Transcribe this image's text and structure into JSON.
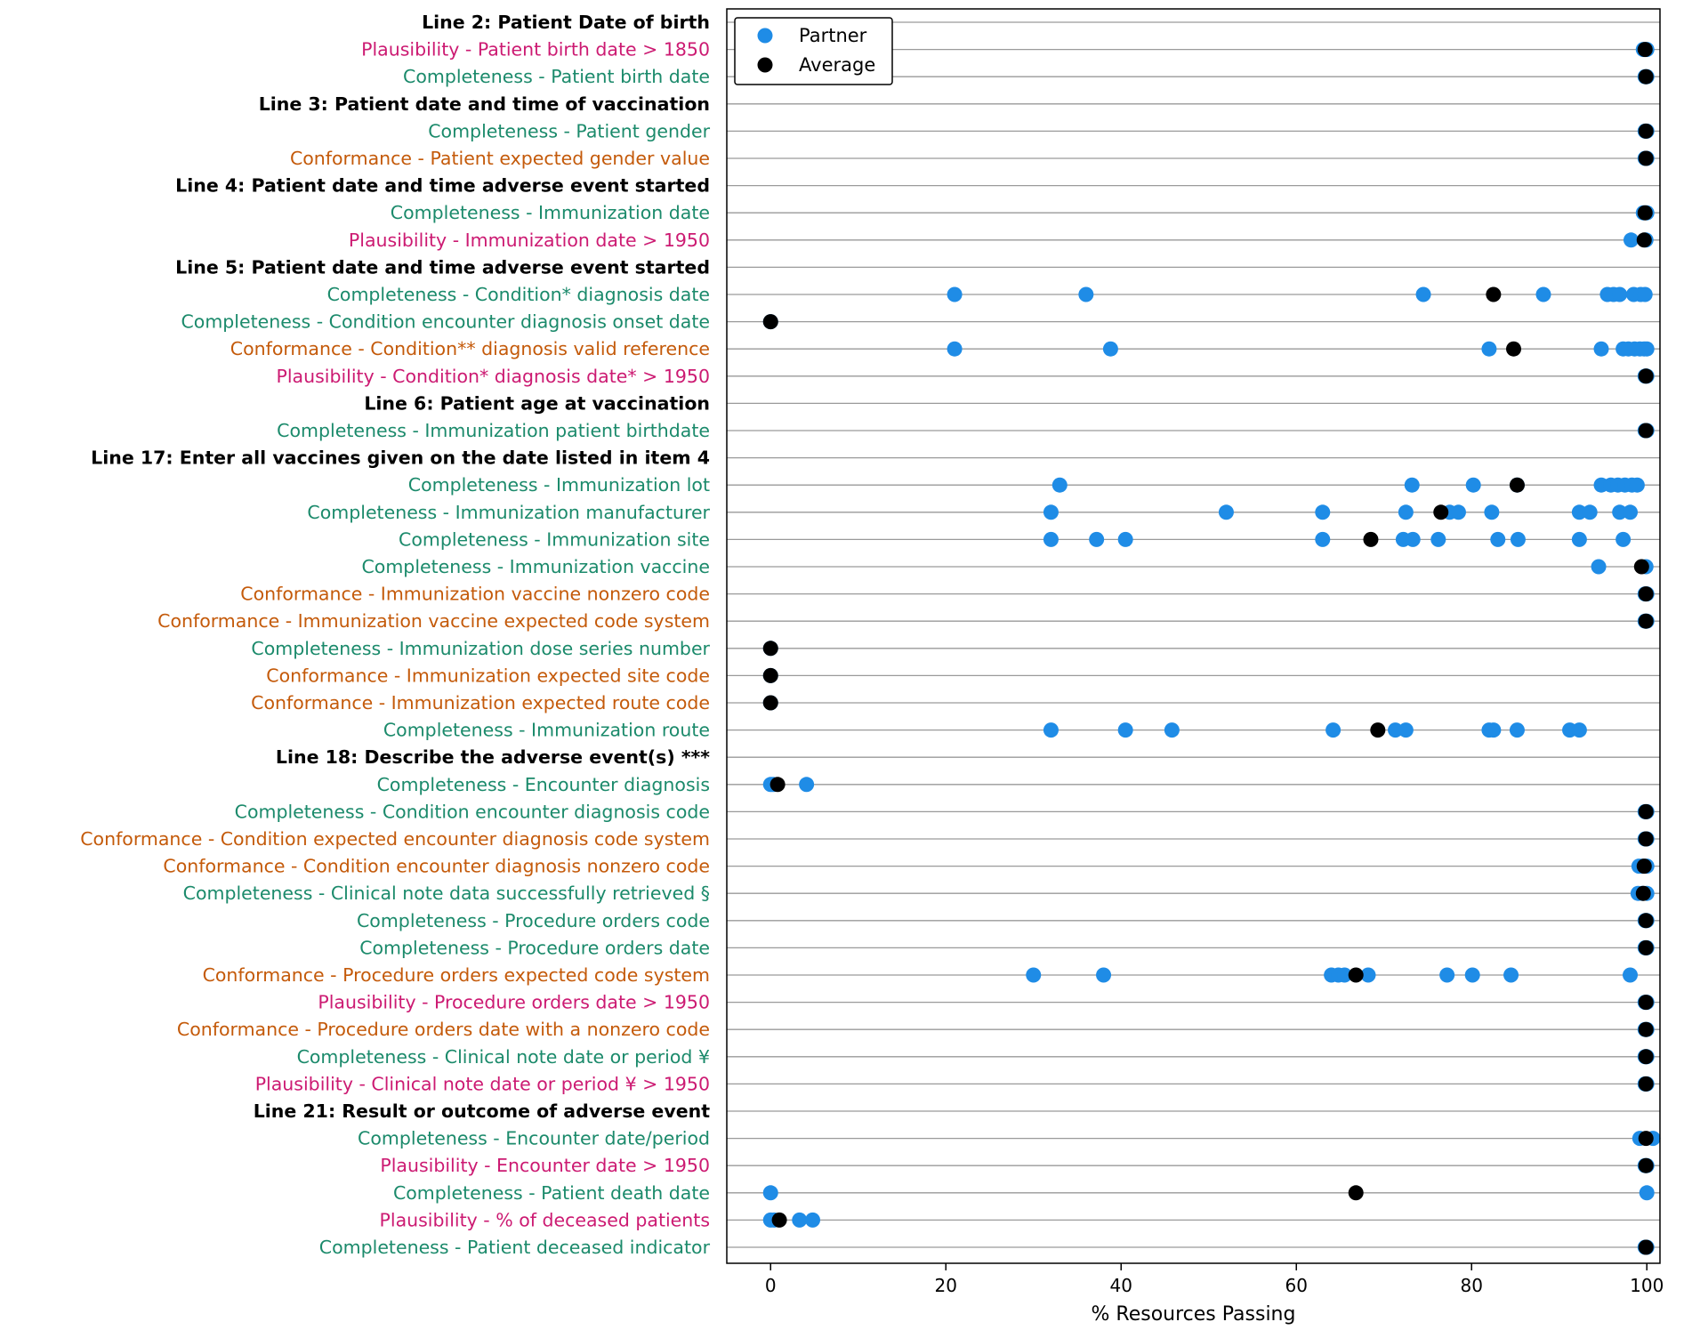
{
  "colors": {
    "partner": "#1f8ce6",
    "average": "#000000",
    "Completeness": "#1b8a6b",
    "Conformance": "#c45a0a",
    "Plausibility": "#cc1a72",
    "heading": "#000000",
    "gridline": "#9a9a9a"
  },
  "chart_data": {
    "type": "scatter",
    "orientation": "horizontal",
    "xlabel": "% Resources Passing",
    "xlim": [
      -5,
      101.5
    ],
    "xticks": [
      0,
      20,
      40,
      60,
      80,
      100
    ],
    "legend": {
      "location": "top-left",
      "entries": [
        {
          "name": "Partner",
          "color_key": "partner"
        },
        {
          "name": "Average",
          "color_key": "average"
        }
      ]
    },
    "rows": [
      {
        "label": "Line 2: Patient Date of birth",
        "kind": "heading"
      },
      {
        "label": "Plausibility - Patient birth date > 1850",
        "kind": "Plausibility",
        "partners": [
          99.6,
          100
        ],
        "average": 99.8
      },
      {
        "label": "Completeness - Patient birth date",
        "kind": "Completeness",
        "partners": [
          99.8,
          100
        ],
        "average": 99.9
      },
      {
        "label": "Line 3: Patient date and time of vaccination",
        "kind": "heading"
      },
      {
        "label": "Completeness - Patient gender",
        "kind": "Completeness",
        "partners": [
          99.8,
          100
        ],
        "average": 99.9
      },
      {
        "label": "Conformance - Patient expected gender value",
        "kind": "Conformance",
        "partners": [
          99.8,
          100
        ],
        "average": 99.9
      },
      {
        "label": "Line 4: Patient date and time adverse event started",
        "kind": "heading"
      },
      {
        "label": "Completeness - Immunization date",
        "kind": "Completeness",
        "partners": [
          99.6,
          100
        ],
        "average": 99.8
      },
      {
        "label": "Plausibility - Immunization date > 1950",
        "kind": "Plausibility",
        "partners": [
          98.2,
          99.9
        ],
        "average": 99.7
      },
      {
        "label": "Line 5: Patient date and time adverse event started",
        "kind": "heading"
      },
      {
        "label": "Completeness - Condition* diagnosis date",
        "kind": "Completeness",
        "partners": [
          21,
          36,
          74.5,
          88.2,
          95.5,
          96.2,
          96.9,
          98.5,
          99.3,
          99.8
        ],
        "average": 82.5
      },
      {
        "label": "Completeness - Condition encounter diagnosis onset date",
        "kind": "Completeness",
        "partners": [
          0
        ],
        "average": 0
      },
      {
        "label": "Conformance - Condition** diagnosis valid reference",
        "kind": "Conformance",
        "partners": [
          21,
          38.8,
          82,
          94.8,
          97.3,
          97.9,
          98.6,
          99.2,
          99.7,
          100
        ],
        "average": 84.8
      },
      {
        "label": "Plausibility - Condition* diagnosis date* > 1950",
        "kind": "Plausibility",
        "partners": [
          99.8,
          100
        ],
        "average": 99.9
      },
      {
        "label": "Line 6: Patient age at vaccination",
        "kind": "heading"
      },
      {
        "label": "Completeness - Immunization patient birthdate",
        "kind": "Completeness",
        "partners": [
          99.8,
          100
        ],
        "average": 99.9
      },
      {
        "label": "Line 17: Enter all vaccines given on the date listed in item 4",
        "kind": "heading"
      },
      {
        "label": "Completeness - Immunization lot",
        "kind": "Completeness",
        "partners": [
          33,
          73.2,
          80.2,
          85.2,
          94.8,
          95.9,
          96.7,
          97.5,
          98.3,
          98.9
        ],
        "average": 85.2
      },
      {
        "label": "Completeness - Immunization manufacturer",
        "kind": "Completeness",
        "partners": [
          32,
          52,
          63,
          72.5,
          77.5,
          78.5,
          82.3,
          92.3,
          93.5,
          96.9,
          98.1
        ],
        "average": 76.5
      },
      {
        "label": "Completeness - Immunization site",
        "kind": "Completeness",
        "partners": [
          32,
          37.2,
          40.5,
          63,
          72.2,
          73.3,
          76.2,
          83,
          85.3,
          92.3,
          97.3
        ],
        "average": 68.5
      },
      {
        "label": "Completeness - Immunization vaccine",
        "kind": "Completeness",
        "partners": [
          94.5,
          99.9
        ],
        "average": 99.4
      },
      {
        "label": "Conformance - Immunization vaccine nonzero code",
        "kind": "Conformance",
        "partners": [
          99.8,
          100
        ],
        "average": 99.9
      },
      {
        "label": "Conformance - Immunization vaccine expected code system",
        "kind": "Conformance",
        "partners": [
          99.8,
          100
        ],
        "average": 99.9
      },
      {
        "label": "Completeness - Immunization dose series number",
        "kind": "Completeness",
        "partners": [
          0
        ],
        "average": 0
      },
      {
        "label": "Conformance - Immunization expected site code",
        "kind": "Conformance",
        "partners": [
          0
        ],
        "average": 0
      },
      {
        "label": "Conformance - Immunization expected route code",
        "kind": "Conformance",
        "partners": [
          0
        ],
        "average": 0
      },
      {
        "label": "Completeness - Immunization route",
        "kind": "Completeness",
        "partners": [
          32,
          40.5,
          45.8,
          64.2,
          71.3,
          72.5,
          82,
          82.5,
          85.2,
          91.2,
          92.3
        ],
        "average": 69.3
      },
      {
        "label": "Line 18: Describe the adverse event(s) ***",
        "kind": "heading"
      },
      {
        "label": "Completeness - Encounter diagnosis",
        "kind": "Completeness",
        "partners": [
          0,
          0.3,
          4.1
        ],
        "average": 0.8
      },
      {
        "label": "Completeness - Condition encounter diagnosis code",
        "kind": "Completeness",
        "partners": [
          99.8,
          100
        ],
        "average": 99.9
      },
      {
        "label": "Conformance - Condition expected encounter diagnosis code system",
        "kind": "Conformance",
        "partners": [
          99.8,
          100
        ],
        "average": 99.9
      },
      {
        "label": "Conformance - Condition encounter diagnosis nonzero code",
        "kind": "Conformance",
        "partners": [
          99.1,
          99.5,
          100
        ],
        "average": 99.7
      },
      {
        "label": "Completeness - Clinical note data successfully retrieved §",
        "kind": "Completeness",
        "partners": [
          99,
          99.5,
          100
        ],
        "average": 99.6
      },
      {
        "label": "Completeness - Procedure orders code",
        "kind": "Completeness",
        "partners": [
          99.8,
          100
        ],
        "average": 99.9
      },
      {
        "label": "Completeness - Procedure orders date",
        "kind": "Completeness",
        "partners": [
          99.8,
          100
        ],
        "average": 99.9
      },
      {
        "label": "Conformance - Procedure orders expected code system",
        "kind": "Conformance",
        "partners": [
          30,
          38,
          64,
          64.8,
          65.5,
          68.2,
          77.2,
          80.1,
          84.5,
          98.1
        ],
        "average": 66.8
      },
      {
        "label": "Plausibility - Procedure orders date > 1950",
        "kind": "Plausibility",
        "partners": [
          99.8,
          100
        ],
        "average": 99.9
      },
      {
        "label": "Conformance - Procedure orders date with a nonzero code",
        "kind": "Conformance",
        "partners": [
          99.8,
          100
        ],
        "average": 99.9
      },
      {
        "label": "Completeness - Clinical note date or period ¥",
        "kind": "Completeness",
        "partners": [
          99.8,
          100
        ],
        "average": 99.9
      },
      {
        "label": "Plausibility - Clinical note date or period ¥ > 1950",
        "kind": "Plausibility",
        "partners": [
          99.8,
          100
        ],
        "average": 99.9
      },
      {
        "label": "Line 21: Result or outcome of adverse event",
        "kind": "heading"
      },
      {
        "label": "Completeness - Encounter date/period",
        "kind": "Completeness",
        "partners": [
          99.2,
          100.7
        ],
        "average": 99.9
      },
      {
        "label": "Plausibility - Encounter date > 1950",
        "kind": "Plausibility",
        "partners": [
          99.8,
          100
        ],
        "average": 99.9
      },
      {
        "label": "Completeness - Patient death date",
        "kind": "Completeness",
        "partners": [
          0,
          100
        ],
        "average": 66.8
      },
      {
        "label": "Plausibility - % of deceased patients",
        "kind": "Plausibility",
        "partners": [
          0,
          0.4,
          3.3,
          4.8
        ],
        "average": 1
      },
      {
        "label": "Completeness - Patient deceased indicator",
        "kind": "Completeness",
        "partners": [
          99.8,
          100
        ],
        "average": 99.9
      }
    ]
  }
}
